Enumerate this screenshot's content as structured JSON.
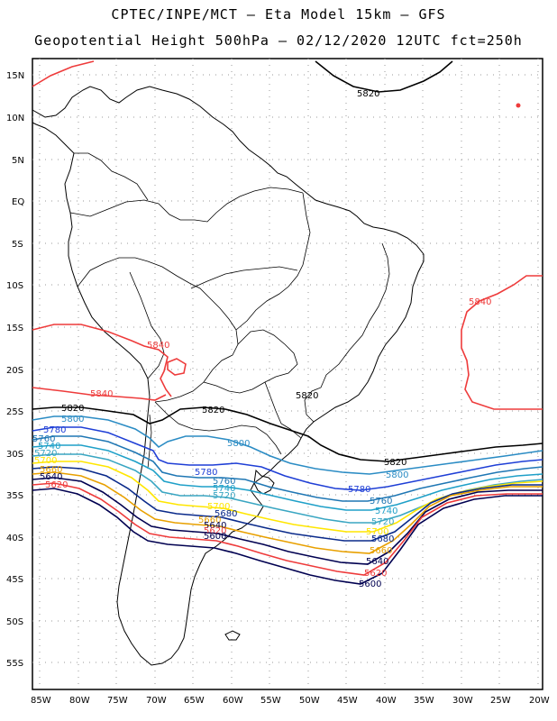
{
  "title_line1": "CPTEC/INPE/MCT – Eta Model 15km – GFS",
  "title_line2": "Geopotential Height 500hPa – 02/12/2020 12UTC fct=250h",
  "lat_labels": [
    "15N",
    "10N",
    "5N",
    "EQ",
    "5S",
    "10S",
    "15S",
    "20S",
    "25S",
    "30S",
    "35S",
    "40S",
    "45S",
    "50S",
    "55S"
  ],
  "lon_labels": [
    "85W",
    "80W",
    "75W",
    "70W",
    "65W",
    "60W",
    "55W",
    "50W",
    "45W",
    "40W",
    "35W",
    "30W",
    "25W",
    "20W"
  ],
  "contour_labels": {
    "c5840": "5840",
    "c5820": "5820",
    "c5800": "5800",
    "c5780": "5780",
    "c5760": "5760",
    "c5740": "5740",
    "c5720": "5720",
    "c5700": "5700",
    "c5680": "5680",
    "c5660": "5660",
    "c5640": "5640",
    "c5620": "5620",
    "c5600": "5600"
  },
  "colors": {
    "c5840": "#ee3b3b",
    "c5820": "#000000",
    "c5800": "#2b8cc4",
    "c5780": "#1f3fd6",
    "c5760": "#1f77b4",
    "c5740": "#1fa0c8",
    "c5720": "#3aa6c2",
    "c5700": "#ffe600",
    "c5680": "#0a2a8a",
    "c5660": "#e8a000",
    "c5640": "#000050",
    "c5620": "#ee3b3b",
    "c5600": "#000050",
    "coast": "#000000"
  }
}
